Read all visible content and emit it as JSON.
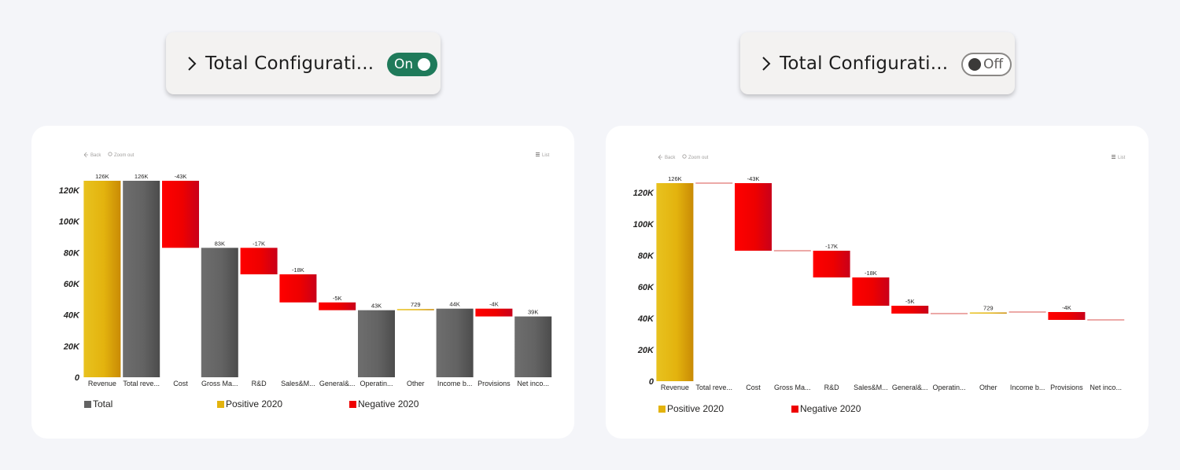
{
  "colors": {
    "total": "#636363",
    "positive": "#e3b30e",
    "negative": "#ee0000",
    "toggle_on": "#1f7a5a"
  },
  "panels": [
    {
      "config": {
        "title": "Total Configurati...",
        "toggle_label": "On"
      },
      "toolbar": {
        "back": "Back",
        "zoom_out": "Zoom out",
        "list": "List"
      },
      "legend": [
        {
          "label": "Total",
          "kind": "total"
        },
        {
          "label": "Positive 2020",
          "kind": "positive"
        },
        {
          "label": "Negative 2020",
          "kind": "negative"
        }
      ]
    },
    {
      "config": {
        "title": "Total Configurati...",
        "toggle_label": "Off"
      },
      "toolbar": {
        "back": "Back",
        "zoom_out": "Zoom out",
        "list": "List"
      },
      "legend": [
        {
          "label": "Positive 2020",
          "kind": "positive"
        },
        {
          "label": "Negative 2020",
          "kind": "negative"
        }
      ]
    }
  ],
  "chart_data": [
    {
      "type": "bar",
      "subtype": "waterfall",
      "ylim": [
        0,
        126000
      ],
      "yticks": [
        "0",
        "20K",
        "40K",
        "60K",
        "80K",
        "100K",
        "120K"
      ],
      "bars": [
        {
          "category": "Revenue",
          "kind": "positive",
          "start": 0,
          "end": 126000,
          "label": "126K"
        },
        {
          "category": "Total reve...",
          "kind": "total",
          "start": 0,
          "end": 126000,
          "label": "126K"
        },
        {
          "category": "Cost",
          "kind": "negative",
          "start": 126000,
          "end": 83000,
          "label": "-43K"
        },
        {
          "category": "Gross Ma...",
          "kind": "total",
          "start": 0,
          "end": 83000,
          "label": "83K"
        },
        {
          "category": "R&D",
          "kind": "negative",
          "start": 83000,
          "end": 66000,
          "label": "-17K"
        },
        {
          "category": "Sales&M...",
          "kind": "negative",
          "start": 66000,
          "end": 48000,
          "label": "-18K"
        },
        {
          "category": "General&...",
          "kind": "negative",
          "start": 48000,
          "end": 43000,
          "label": "-5K"
        },
        {
          "category": "Operatin...",
          "kind": "total",
          "start": 0,
          "end": 43000,
          "label": "43K"
        },
        {
          "category": "Other",
          "kind": "positive",
          "start": 43000,
          "end": 43729,
          "label": "729"
        },
        {
          "category": "Income b...",
          "kind": "total",
          "start": 0,
          "end": 44000,
          "label": "44K"
        },
        {
          "category": "Provisions",
          "kind": "negative",
          "start": 44000,
          "end": 39000,
          "label": "-4K"
        },
        {
          "category": "Net inco...",
          "kind": "total",
          "start": 0,
          "end": 39000,
          "label": "39K"
        }
      ]
    },
    {
      "type": "bar",
      "subtype": "waterfall",
      "ylim": [
        0,
        126000
      ],
      "yticks": [
        "0",
        "20K",
        "40K",
        "60K",
        "80K",
        "100K",
        "120K"
      ],
      "bars": [
        {
          "category": "Revenue",
          "kind": "positive",
          "start": 0,
          "end": 126000,
          "label": "126K"
        },
        {
          "category": "Total reve...",
          "kind": "flat",
          "start": 126000,
          "end": 126000,
          "label": ""
        },
        {
          "category": "Cost",
          "kind": "negative",
          "start": 126000,
          "end": 83000,
          "label": "-43K"
        },
        {
          "category": "Gross Ma...",
          "kind": "flat",
          "start": 83000,
          "end": 83000,
          "label": ""
        },
        {
          "category": "R&D",
          "kind": "negative",
          "start": 83000,
          "end": 66000,
          "label": "-17K"
        },
        {
          "category": "Sales&M...",
          "kind": "negative",
          "start": 66000,
          "end": 48000,
          "label": "-18K"
        },
        {
          "category": "General&...",
          "kind": "negative",
          "start": 48000,
          "end": 43000,
          "label": "-5K"
        },
        {
          "category": "Operatin...",
          "kind": "flat",
          "start": 43000,
          "end": 43000,
          "label": ""
        },
        {
          "category": "Other",
          "kind": "positive",
          "start": 43000,
          "end": 43729,
          "label": "729"
        },
        {
          "category": "Income b...",
          "kind": "flat",
          "start": 44000,
          "end": 44000,
          "label": ""
        },
        {
          "category": "Provisions",
          "kind": "negative",
          "start": 44000,
          "end": 39000,
          "label": "-4K"
        },
        {
          "category": "Net inco...",
          "kind": "flat",
          "start": 39000,
          "end": 39000,
          "label": ""
        }
      ]
    }
  ]
}
